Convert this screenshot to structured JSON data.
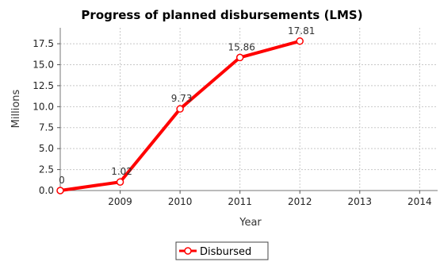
{
  "chart_data": {
    "type": "line",
    "title": "Progress of planned disbursements (LMS)",
    "xlabel": "Year",
    "ylabel": "Millions",
    "x_ticks": [
      "2009",
      "2010",
      "2011",
      "2012",
      "2013",
      "2014"
    ],
    "xlim": [
      2008,
      2014.3
    ],
    "ylim": [
      0,
      19.4
    ],
    "y_ticks": [
      "0.0",
      "2.5",
      "5.0",
      "7.5",
      "10.0",
      "12.5",
      "15.0",
      "17.5"
    ],
    "grid": true,
    "legend_position": "bottom",
    "series": [
      {
        "name": "Disbursed",
        "color": "#ff0000",
        "points": [
          {
            "x": 2008,
            "y": 0,
            "label": "0"
          },
          {
            "x": 2009,
            "y": 1.02,
            "label": "1.02"
          },
          {
            "x": 2010,
            "y": 9.73,
            "label": "9.73"
          },
          {
            "x": 2011,
            "y": 15.86,
            "label": "15.86"
          },
          {
            "x": 2012,
            "y": 17.81,
            "label": "17.81"
          }
        ]
      }
    ]
  }
}
